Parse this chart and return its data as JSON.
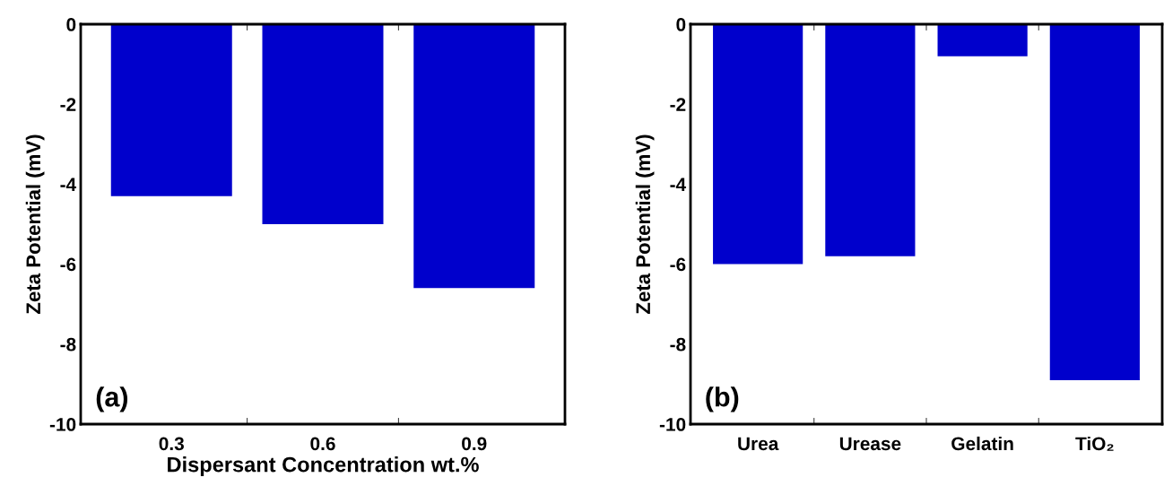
{
  "chart_data": [
    {
      "type": "bar",
      "xlabel": "Dispersant Concentration wt.%",
      "ylabel": "Zeta Potential (mV)",
      "categories": [
        "0.3",
        "0.6",
        "0.9"
      ],
      "values": [
        -4.3,
        -5.0,
        -6.6
      ],
      "color": "#0000cc",
      "ylim": [
        -10,
        0
      ],
      "yticks": [
        -10,
        -8,
        -6,
        -4,
        -2,
        0
      ],
      "grid": false,
      "annotations": [
        "(a)"
      ]
    },
    {
      "type": "bar",
      "ylabel": "Zeta Potential (mV)",
      "categories": [
        "Urea",
        "Urease",
        "Gelatin",
        "TiO₂"
      ],
      "values": [
        -6.0,
        -5.8,
        -0.8,
        -8.9
      ],
      "color": "#0000cc",
      "ylim": [
        -10,
        0
      ],
      "yticks": [
        -10,
        -8,
        -6,
        -4,
        -2,
        0
      ],
      "grid": false,
      "annotations": [
        "(b)"
      ]
    }
  ]
}
